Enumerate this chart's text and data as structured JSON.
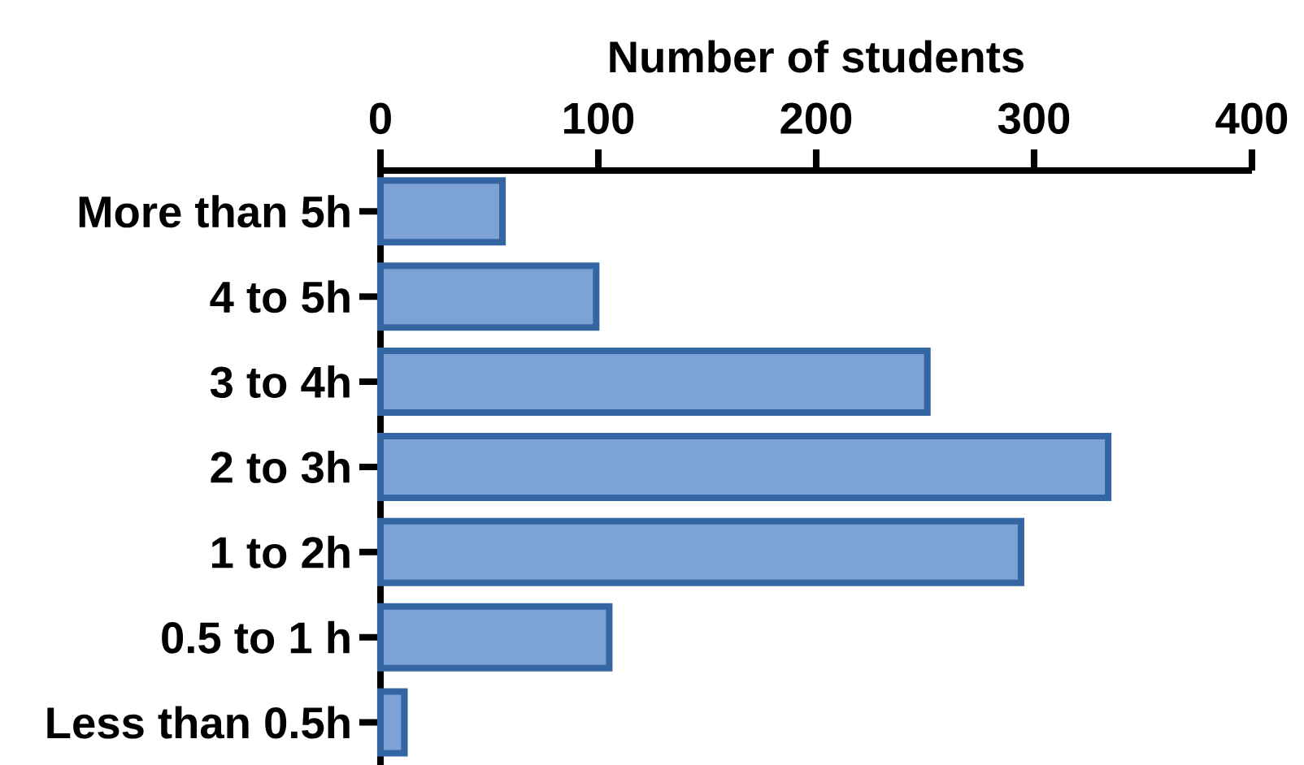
{
  "chart_data": {
    "type": "bar",
    "orientation": "horizontal",
    "xlabel": "Number of students",
    "categories": [
      "More than 5h",
      "4 to 5h",
      "3 to 4h",
      "2 to 3h",
      "1 to 2h",
      "0.5 to 1 h",
      "Less than 0.5h"
    ],
    "values": [
      56,
      99,
      251,
      334,
      294,
      105,
      11
    ],
    "color": "#7da2d6",
    "xlim": [
      0,
      400
    ],
    "xticks": [
      0,
      100,
      200,
      300,
      400
    ]
  }
}
